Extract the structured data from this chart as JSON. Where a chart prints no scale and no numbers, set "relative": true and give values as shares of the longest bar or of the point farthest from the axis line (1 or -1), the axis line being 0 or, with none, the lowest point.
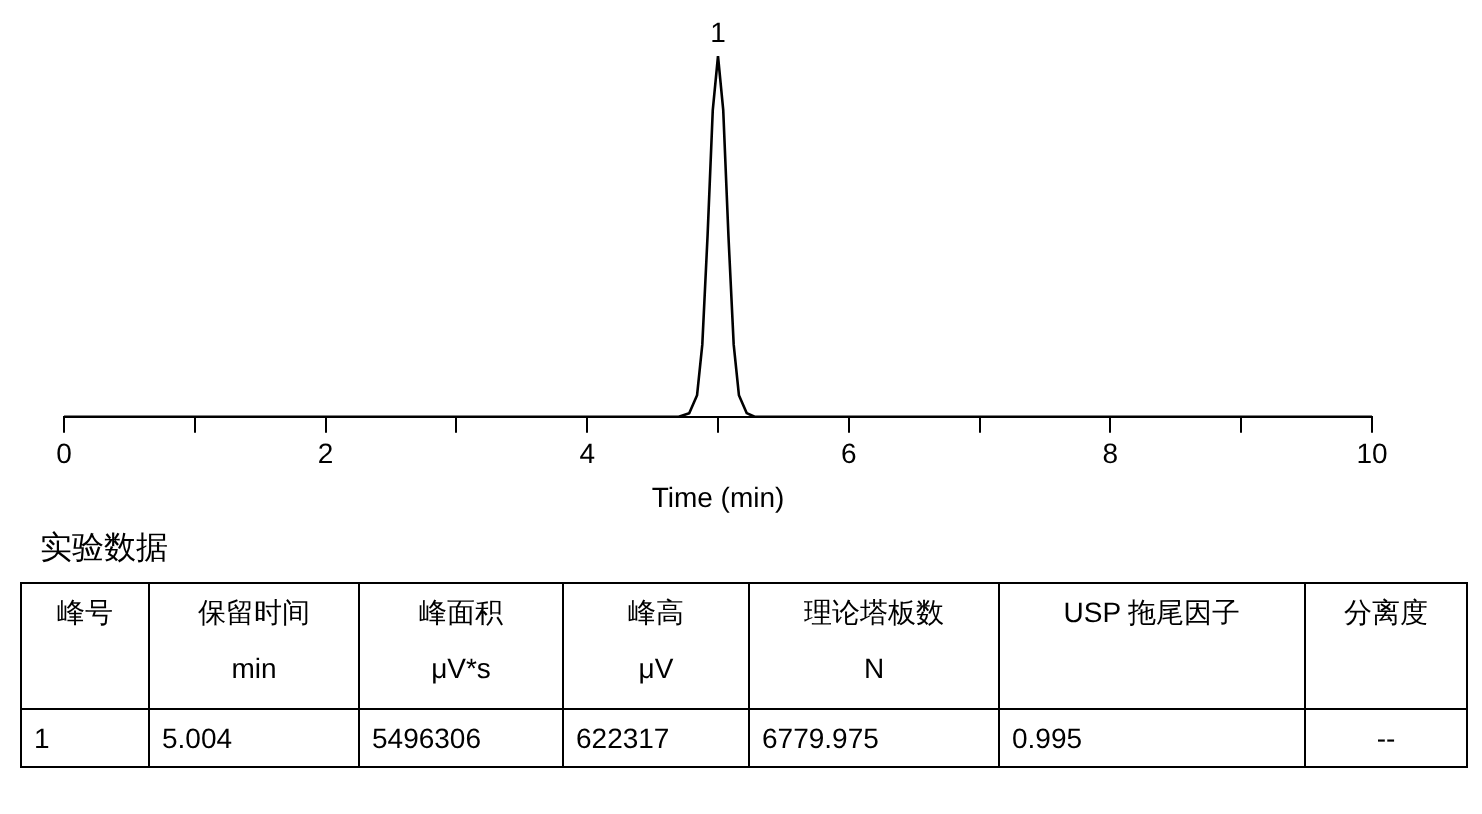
{
  "chart_data": [
    {
      "type": "line",
      "relative": true,
      "xlabel": "Time (min)",
      "color": "#000000",
      "marker": "none",
      "x": [
        0,
        4.7,
        4.78,
        4.84,
        4.88,
        4.92,
        4.96,
        5.0,
        5.04,
        5.08,
        5.12,
        5.16,
        5.22,
        5.28,
        10
      ],
      "values": [
        0,
        0,
        0.01,
        0.06,
        0.2,
        0.5,
        0.85,
        1,
        0.85,
        0.5,
        0.2,
        0.06,
        0.01,
        0,
        0
      ],
      "xlim": [
        0,
        10
      ],
      "xticks": [
        0,
        {
          "value": 1,
          "label": null
        },
        2,
        {
          "value": 3,
          "label": null
        },
        4,
        {
          "value": 5,
          "label": null
        },
        6,
        {
          "value": 7,
          "label": null
        },
        8,
        {
          "value": 9,
          "label": null
        },
        10
      ],
      "annotations": [
        {
          "text": "1",
          "x": 5.0,
          "y": 1
        }
      ]
    },
    {
      "type": "other",
      "title": "实验数据",
      "cell_labels": [
        [
          "峰号",
          "保留时间",
          "峰面积",
          "峰高",
          "理论塔板数",
          "USP 拖尾因子",
          "分离度"
        ],
        [
          null,
          "min",
          "μV*s",
          "μV",
          "N",
          null,
          null
        ],
        [
          "1",
          "5.004",
          "5496306",
          "622317",
          "6779.975",
          "0.995",
          "--"
        ]
      ]
    }
  ]
}
